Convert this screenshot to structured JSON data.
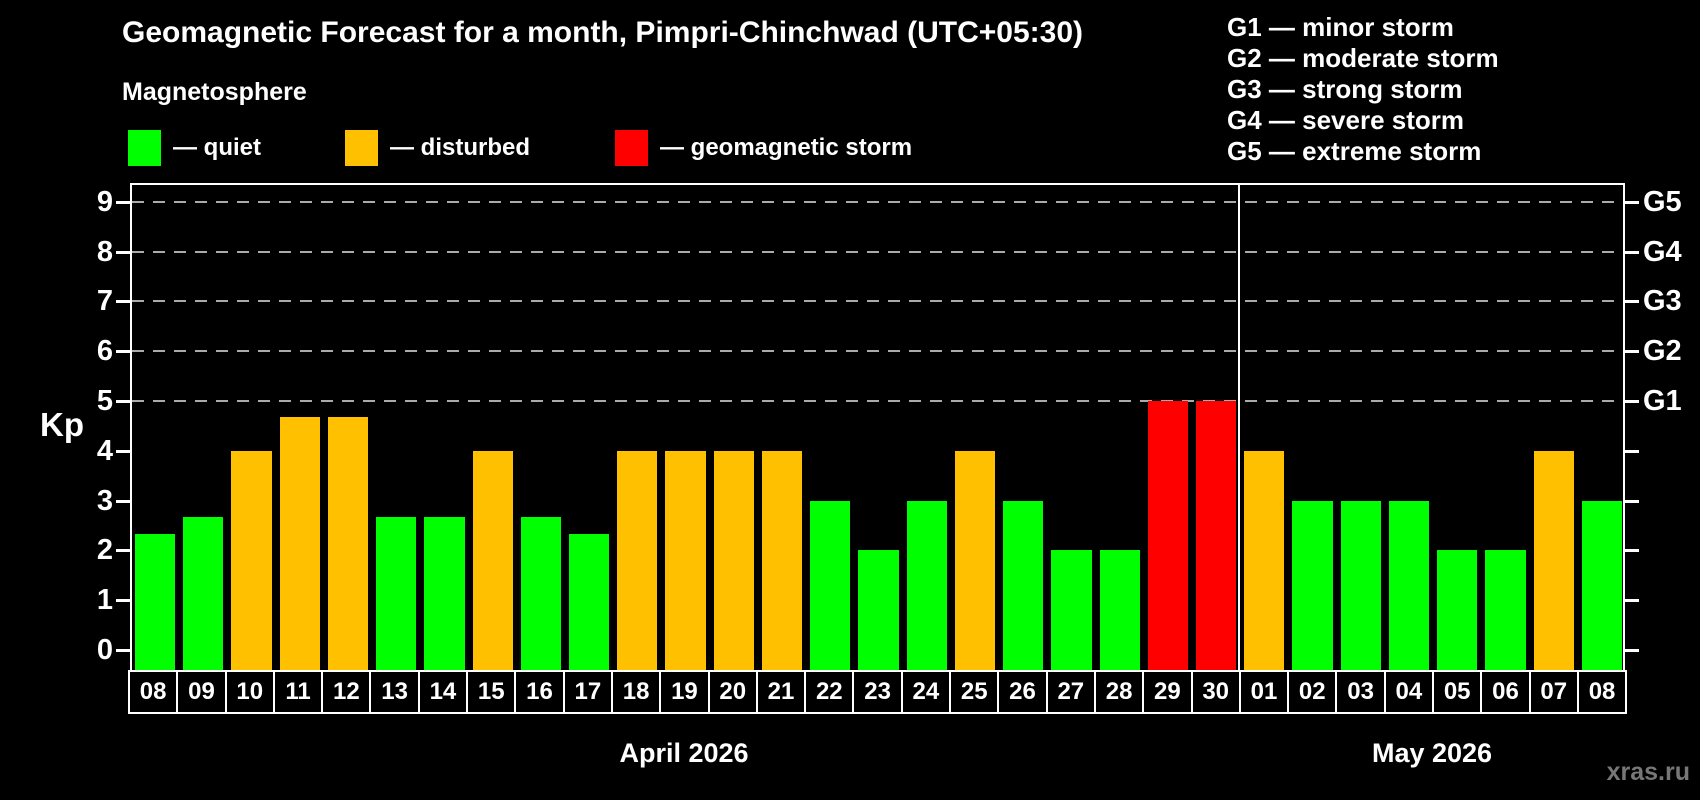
{
  "title": "Geomagnetic Forecast for a month, Pimpri-Chinchwad (UTC+05:30)",
  "subtitle": "Magnetosphere",
  "legend": {
    "items": [
      {
        "name": "quiet",
        "label": "— quiet",
        "color": "#00ff00"
      },
      {
        "name": "disturbed",
        "label": "— disturbed",
        "color": "#ffc000"
      },
      {
        "name": "storm",
        "label": "— geomagnetic storm",
        "color": "#ff0000"
      }
    ]
  },
  "g_scale_legend": [
    "G1 — minor storm",
    "G2 — moderate storm",
    "G3 — strong storm",
    "G4 — severe storm",
    "G5 — extreme storm"
  ],
  "watermark": "xras.ru",
  "colors": {
    "background": "#000000",
    "quiet": "#00ff00",
    "disturbed": "#ffc000",
    "storm": "#ff0000",
    "axis": "#ffffff",
    "gridline": "#aaaaaa",
    "watermark": "#777777"
  },
  "chart_data": {
    "type": "bar",
    "title": "Geomagnetic Forecast for a month, Pimpri-Chinchwad (UTC+05:30)",
    "xlabel": "",
    "ylabel": "Kp",
    "ylim": [
      0,
      9
    ],
    "yticks": [
      0,
      1,
      2,
      3,
      4,
      5,
      6,
      7,
      8,
      9
    ],
    "gridlines_kp": [
      5,
      6,
      7,
      8,
      9
    ],
    "grid": "dashed, only at Kp 5-9",
    "right_axis": [
      {
        "label": "G1",
        "kp": 5
      },
      {
        "label": "G2",
        "kp": 6
      },
      {
        "label": "G3",
        "kp": 7
      },
      {
        "label": "G4",
        "kp": 8
      },
      {
        "label": "G5",
        "kp": 9
      }
    ],
    "color_rule": {
      "storm_min_kp": 5,
      "disturbed_min_kp": 4
    },
    "months": [
      {
        "label": "April 2026",
        "days": [
          "08",
          "09",
          "10",
          "11",
          "12",
          "13",
          "14",
          "15",
          "16",
          "17",
          "18",
          "19",
          "20",
          "21",
          "22",
          "23",
          "24",
          "25",
          "26",
          "27",
          "28",
          "29",
          "30"
        ],
        "values": [
          2.33,
          2.67,
          4,
          4.67,
          4.67,
          2.67,
          2.67,
          4,
          2.67,
          2.33,
          4,
          4,
          4,
          4,
          3,
          2,
          3,
          4,
          3,
          2,
          2,
          5,
          5
        ]
      },
      {
        "label": "May 2026",
        "days": [
          "01",
          "02",
          "03",
          "04",
          "05",
          "06",
          "07",
          "08"
        ],
        "values": [
          4,
          3,
          3,
          3,
          2,
          2,
          4,
          3
        ]
      }
    ]
  }
}
